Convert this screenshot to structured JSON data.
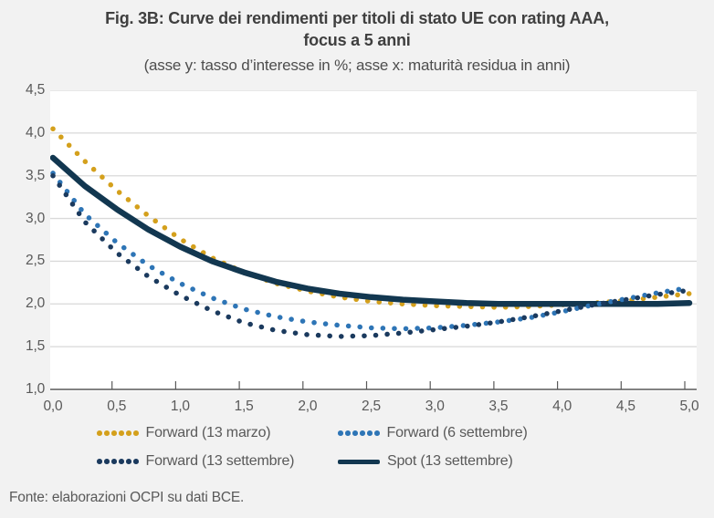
{
  "figure": {
    "title_line1": "Fig. 3B: Curve dei rendimenti per titoli di stato UE con rating AAA,",
    "title_line2": "focus a 5 anni",
    "subtitle": "(asse y: tasso d’interesse in %; asse x: maturità residua in anni)",
    "source": "Fonte: elaborazioni OCPI su dati BCE."
  },
  "colors": {
    "background": "#F2F2F2",
    "plot_background": "#FFFFFF",
    "gridline": "#D9D9D9",
    "axis": "#595959",
    "title_text": "#3F3F3F",
    "label_text": "#595959",
    "gold": "#D4A01C",
    "blue": "#2E75B6",
    "navy": "#1B3A5E",
    "spot_navy": "#123750"
  },
  "chart_data": {
    "type": "line",
    "title": "Fig. 3B: Curve dei rendimenti per titoli di stato UE con rating AAA, focus a 5 anni",
    "subtitle": "(asse y: tasso d’interesse in %; asse x: maturità residua in anni)",
    "xlabel": "maturità residua in anni",
    "ylabel": "tasso d’interesse in %",
    "xlim": [
      0,
      5
    ],
    "ylim": [
      1.0,
      4.5
    ],
    "grid": "horizontal",
    "legend_position": "bottom",
    "y_ticks": [
      {
        "label": "4,5",
        "v": 4.5
      },
      {
        "label": "4,0",
        "v": 4.0
      },
      {
        "label": "3,5",
        "v": 3.5
      },
      {
        "label": "3,0",
        "v": 3.0
      },
      {
        "label": "2,5",
        "v": 2.5
      },
      {
        "label": "2,0",
        "v": 2.0
      },
      {
        "label": "1,5",
        "v": 1.5
      },
      {
        "label": "1,0",
        "v": 1.0
      }
    ],
    "x_ticks": [
      {
        "label": "0,0",
        "v": 0.0
      },
      {
        "label": "0,5",
        "v": 0.5
      },
      {
        "label": "1,0",
        "v": 1.0
      },
      {
        "label": "1,5",
        "v": 1.5
      },
      {
        "label": "2,0",
        "v": 2.0
      },
      {
        "label": "2,5",
        "v": 2.5
      },
      {
        "label": "3,0",
        "v": 3.0
      },
      {
        "label": "3,5",
        "v": 3.5
      },
      {
        "label": "4,0",
        "v": 4.0
      },
      {
        "label": "4,5",
        "v": 4.5
      },
      {
        "label": "5,0",
        "v": 5.0
      }
    ],
    "x": [
      0,
      0.25,
      0.5,
      0.75,
      1.0,
      1.25,
      1.5,
      1.75,
      2.0,
      2.25,
      2.5,
      2.75,
      3.0,
      3.25,
      3.5,
      3.75,
      4.0,
      4.25,
      4.5,
      4.75,
      5.0
    ],
    "series": [
      {
        "id": "forward-13-marzo",
        "name": "Forward (13 marzo)",
        "color": "#D4A01C",
        "style": "dotted",
        "values": [
          4.05,
          3.67,
          3.33,
          3.03,
          2.76,
          2.54,
          2.37,
          2.24,
          2.15,
          2.08,
          2.03,
          2.0,
          1.98,
          1.97,
          1.96,
          1.97,
          1.99,
          2.01,
          2.04,
          2.08,
          2.12
        ]
      },
      {
        "id": "spot-13-settembre",
        "name": "Spot (13 settembre)",
        "color": "#123750",
        "style": "solid",
        "values": [
          3.71,
          3.38,
          3.11,
          2.87,
          2.67,
          2.5,
          2.37,
          2.26,
          2.18,
          2.12,
          2.08,
          2.05,
          2.03,
          2.01,
          2.0,
          2.0,
          2.0,
          2.0,
          2.0,
          2.0,
          2.01
        ]
      },
      {
        "id": "forward-6-settembre",
        "name": "Forward (6 settembre)",
        "color": "#2E75B6",
        "style": "dotted",
        "values": [
          3.53,
          3.05,
          2.72,
          2.45,
          2.24,
          2.07,
          1.94,
          1.85,
          1.79,
          1.75,
          1.72,
          1.71,
          1.72,
          1.75,
          1.79,
          1.84,
          1.91,
          1.99,
          2.06,
          2.13,
          2.19
        ]
      },
      {
        "id": "forward-13-settembre",
        "name": "Forward (13 settembre)",
        "color": "#1B3A5E",
        "style": "dotted",
        "values": [
          3.5,
          2.96,
          2.6,
          2.32,
          2.1,
          1.92,
          1.78,
          1.69,
          1.64,
          1.62,
          1.63,
          1.66,
          1.7,
          1.74,
          1.79,
          1.85,
          1.92,
          1.99,
          2.05,
          2.11,
          2.16
        ]
      }
    ],
    "legend_order": [
      "forward-13-marzo",
      "forward-6-settembre",
      "forward-13-settembre",
      "spot-13-settembre"
    ]
  }
}
